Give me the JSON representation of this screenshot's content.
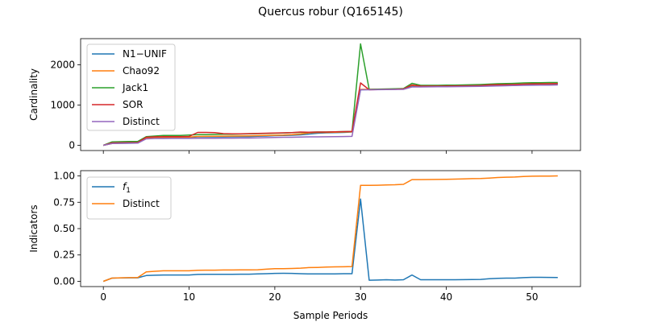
{
  "figure": {
    "title": "Quercus robur (Q165145)",
    "xlabel": "Sample Periods"
  },
  "chart_data": [
    {
      "type": "line",
      "title": "",
      "xlabel": "",
      "ylabel": "Cardinality",
      "xlim": [
        -2.65,
        55.65
      ],
      "ylim": [
        -130,
        2650
      ],
      "xticks": [
        0,
        10,
        20,
        30,
        40,
        50
      ],
      "yticks": [
        0,
        1000,
        2000
      ],
      "ytick_labels": [
        "0",
        "1000",
        "2000"
      ],
      "show_xtick_labels": false,
      "grid": false,
      "legend": "upper left",
      "series": [
        {
          "name": "N1−UNIF",
          "color": "#1f77b4",
          "x": [
            0,
            1,
            2,
            3,
            4,
            5,
            6,
            7,
            8,
            9,
            10,
            11,
            12,
            13,
            14,
            15,
            16,
            17,
            18,
            19,
            20,
            21,
            22,
            23,
            24,
            25,
            26,
            27,
            28,
            29,
            30,
            31,
            32,
            33,
            34,
            35,
            36,
            37,
            38,
            39,
            40,
            41,
            42,
            43,
            44,
            45,
            46,
            47,
            48,
            49,
            50,
            51,
            52,
            53
          ],
          "y": [
            0,
            45,
            50,
            52,
            55,
            170,
            185,
            190,
            190,
            192,
            195,
            210,
            210,
            210,
            210,
            212,
            214,
            216,
            225,
            230,
            240,
            245,
            250,
            260,
            280,
            300,
            310,
            315,
            320,
            330,
            1380,
            1385,
            1388,
            1390,
            1392,
            1400,
            1470,
            1460,
            1460,
            1462,
            1465,
            1468,
            1470,
            1475,
            1480,
            1490,
            1500,
            1505,
            1505,
            1510,
            1515,
            1518,
            1520,
            1522
          ]
        },
        {
          "name": "Chao92",
          "color": "#ff7f0e",
          "x": [
            0,
            1,
            2,
            3,
            4,
            5,
            6,
            7,
            8,
            9,
            10,
            11,
            12,
            13,
            14,
            15,
            16,
            17,
            18,
            19,
            20,
            21,
            22,
            23,
            24,
            25,
            26,
            27,
            28,
            29,
            30,
            31,
            32,
            33,
            34,
            35,
            36,
            37,
            38,
            39,
            40,
            41,
            42,
            43,
            44,
            45,
            46,
            47,
            48,
            49,
            50,
            51,
            52,
            53
          ],
          "y": [
            0,
            45,
            52,
            55,
            58,
            180,
            195,
            200,
            200,
            200,
            205,
            220,
            222,
            225,
            228,
            230,
            232,
            235,
            240,
            245,
            250,
            255,
            265,
            280,
            310,
            320,
            320,
            325,
            330,
            335,
            1390,
            1390,
            1395,
            1395,
            1398,
            1410,
            1490,
            1470,
            1470,
            1472,
            1475,
            1478,
            1480,
            1485,
            1490,
            1500,
            1510,
            1512,
            1515,
            1520,
            1525,
            1528,
            1530,
            1532
          ]
        },
        {
          "name": "Jack1",
          "color": "#2ca02c",
          "x": [
            0,
            1,
            2,
            3,
            4,
            5,
            6,
            7,
            8,
            9,
            10,
            11,
            12,
            13,
            14,
            15,
            16,
            17,
            18,
            19,
            20,
            21,
            22,
            23,
            24,
            25,
            26,
            27,
            28,
            29,
            30,
            31,
            32,
            33,
            34,
            35,
            36,
            37,
            38,
            39,
            40,
            41,
            42,
            43,
            44,
            45,
            46,
            47,
            48,
            49,
            50,
            51,
            52,
            53
          ],
          "y": [
            0,
            85,
            90,
            95,
            95,
            215,
            230,
            245,
            245,
            245,
            255,
            265,
            265,
            270,
            275,
            275,
            280,
            285,
            290,
            295,
            300,
            305,
            315,
            320,
            325,
            330,
            330,
            335,
            340,
            345,
            2520,
            1390,
            1395,
            1400,
            1405,
            1410,
            1540,
            1490,
            1490,
            1490,
            1495,
            1495,
            1500,
            1505,
            1510,
            1520,
            1530,
            1535,
            1540,
            1550,
            1555,
            1555,
            1560,
            1560
          ]
        },
        {
          "name": "SOR",
          "color": "#d62728",
          "x": [
            0,
            1,
            2,
            3,
            4,
            5,
            6,
            7,
            8,
            9,
            10,
            11,
            12,
            13,
            14,
            15,
            16,
            17,
            18,
            19,
            20,
            21,
            22,
            23,
            24,
            25,
            26,
            27,
            28,
            29,
            30,
            31,
            32,
            33,
            34,
            35,
            36,
            37,
            38,
            39,
            40,
            41,
            42,
            43,
            44,
            45,
            46,
            47,
            48,
            49,
            50,
            51,
            52,
            53
          ],
          "y": [
            0,
            60,
            65,
            68,
            70,
            200,
            210,
            215,
            215,
            215,
            220,
            320,
            320,
            315,
            290,
            285,
            285,
            290,
            295,
            300,
            305,
            310,
            315,
            330,
            325,
            330,
            330,
            335,
            340,
            345,
            1550,
            1380,
            1385,
            1390,
            1392,
            1400,
            1500,
            1470,
            1470,
            1470,
            1472,
            1475,
            1478,
            1480,
            1485,
            1500,
            1505,
            1508,
            1510,
            1520,
            1525,
            1528,
            1530,
            1532
          ]
        },
        {
          "name": "Distinct",
          "color": "#9467bd",
          "x": [
            0,
            1,
            2,
            3,
            4,
            5,
            6,
            7,
            8,
            9,
            10,
            11,
            12,
            13,
            14,
            15,
            16,
            17,
            18,
            19,
            20,
            21,
            22,
            23,
            24,
            25,
            26,
            27,
            28,
            29,
            30,
            31,
            32,
            33,
            34,
            35,
            36,
            37,
            38,
            39,
            40,
            41,
            42,
            43,
            44,
            45,
            46,
            47,
            48,
            49,
            50,
            51,
            52,
            53
          ],
          "y": [
            0,
            45,
            50,
            52,
            55,
            160,
            170,
            170,
            172,
            172,
            172,
            175,
            175,
            175,
            178,
            178,
            180,
            180,
            185,
            190,
            195,
            200,
            200,
            205,
            210,
            210,
            212,
            215,
            218,
            222,
            1380,
            1380,
            1382,
            1385,
            1388,
            1390,
            1450,
            1450,
            1452,
            1455,
            1455,
            1458,
            1460,
            1462,
            1465,
            1470,
            1475,
            1480,
            1485,
            1490,
            1492,
            1495,
            1497,
            1500
          ]
        }
      ]
    },
    {
      "type": "line",
      "title": "",
      "xlabel": "Sample Periods",
      "ylabel": "Indicators",
      "xlim": [
        -2.65,
        55.65
      ],
      "ylim": [
        -0.05,
        1.05
      ],
      "xticks": [
        0,
        10,
        20,
        30,
        40,
        50
      ],
      "xtick_labels": [
        "0",
        "10",
        "20",
        "30",
        "40",
        "50"
      ],
      "yticks": [
        0.0,
        0.25,
        0.5,
        0.75,
        1.0
      ],
      "ytick_labels": [
        "0.00",
        "0.25",
        "0.50",
        "0.75",
        "1.00"
      ],
      "grid": false,
      "legend": "upper left",
      "series": [
        {
          "name": "f1",
          "color": "#1f77b4",
          "x": [
            0,
            1,
            2,
            3,
            4,
            5,
            6,
            7,
            8,
            9,
            10,
            11,
            12,
            13,
            14,
            15,
            16,
            17,
            18,
            19,
            20,
            21,
            22,
            23,
            24,
            25,
            26,
            27,
            28,
            29,
            30,
            31,
            32,
            33,
            34,
            35,
            36,
            37,
            38,
            39,
            40,
            41,
            42,
            43,
            44,
            45,
            46,
            47,
            48,
            49,
            50,
            51,
            52,
            53
          ],
          "y": [
            0,
            0.03,
            0.032,
            0.033,
            0.033,
            0.055,
            0.058,
            0.06,
            0.06,
            0.06,
            0.06,
            0.065,
            0.066,
            0.066,
            0.067,
            0.067,
            0.068,
            0.068,
            0.07,
            0.072,
            0.075,
            0.076,
            0.075,
            0.072,
            0.07,
            0.07,
            0.07,
            0.071,
            0.072,
            0.072,
            0.78,
            0.01,
            0.012,
            0.015,
            0.012,
            0.015,
            0.06,
            0.015,
            0.015,
            0.015,
            0.015,
            0.015,
            0.016,
            0.017,
            0.018,
            0.025,
            0.028,
            0.03,
            0.03,
            0.035,
            0.038,
            0.038,
            0.037,
            0.036
          ]
        },
        {
          "name": "Distinct",
          "color": "#ff7f0e",
          "x": [
            0,
            1,
            2,
            3,
            4,
            5,
            6,
            7,
            8,
            9,
            10,
            11,
            12,
            13,
            14,
            15,
            16,
            17,
            18,
            19,
            20,
            21,
            22,
            23,
            24,
            25,
            26,
            27,
            28,
            29,
            30,
            31,
            32,
            33,
            34,
            35,
            36,
            37,
            38,
            39,
            40,
            41,
            42,
            43,
            44,
            45,
            46,
            47,
            48,
            49,
            50,
            51,
            52,
            53
          ],
          "y": [
            0,
            0.03,
            0.033,
            0.035,
            0.035,
            0.09,
            0.095,
            0.1,
            0.1,
            0.1,
            0.1,
            0.105,
            0.106,
            0.106,
            0.107,
            0.107,
            0.108,
            0.108,
            0.11,
            0.115,
            0.12,
            0.12,
            0.122,
            0.125,
            0.13,
            0.132,
            0.135,
            0.137,
            0.138,
            0.14,
            0.91,
            0.91,
            0.912,
            0.915,
            0.916,
            0.92,
            0.965,
            0.965,
            0.966,
            0.967,
            0.968,
            0.97,
            0.972,
            0.974,
            0.976,
            0.98,
            0.985,
            0.988,
            0.99,
            0.995,
            0.997,
            0.998,
            0.999,
            1.0
          ]
        }
      ]
    }
  ]
}
